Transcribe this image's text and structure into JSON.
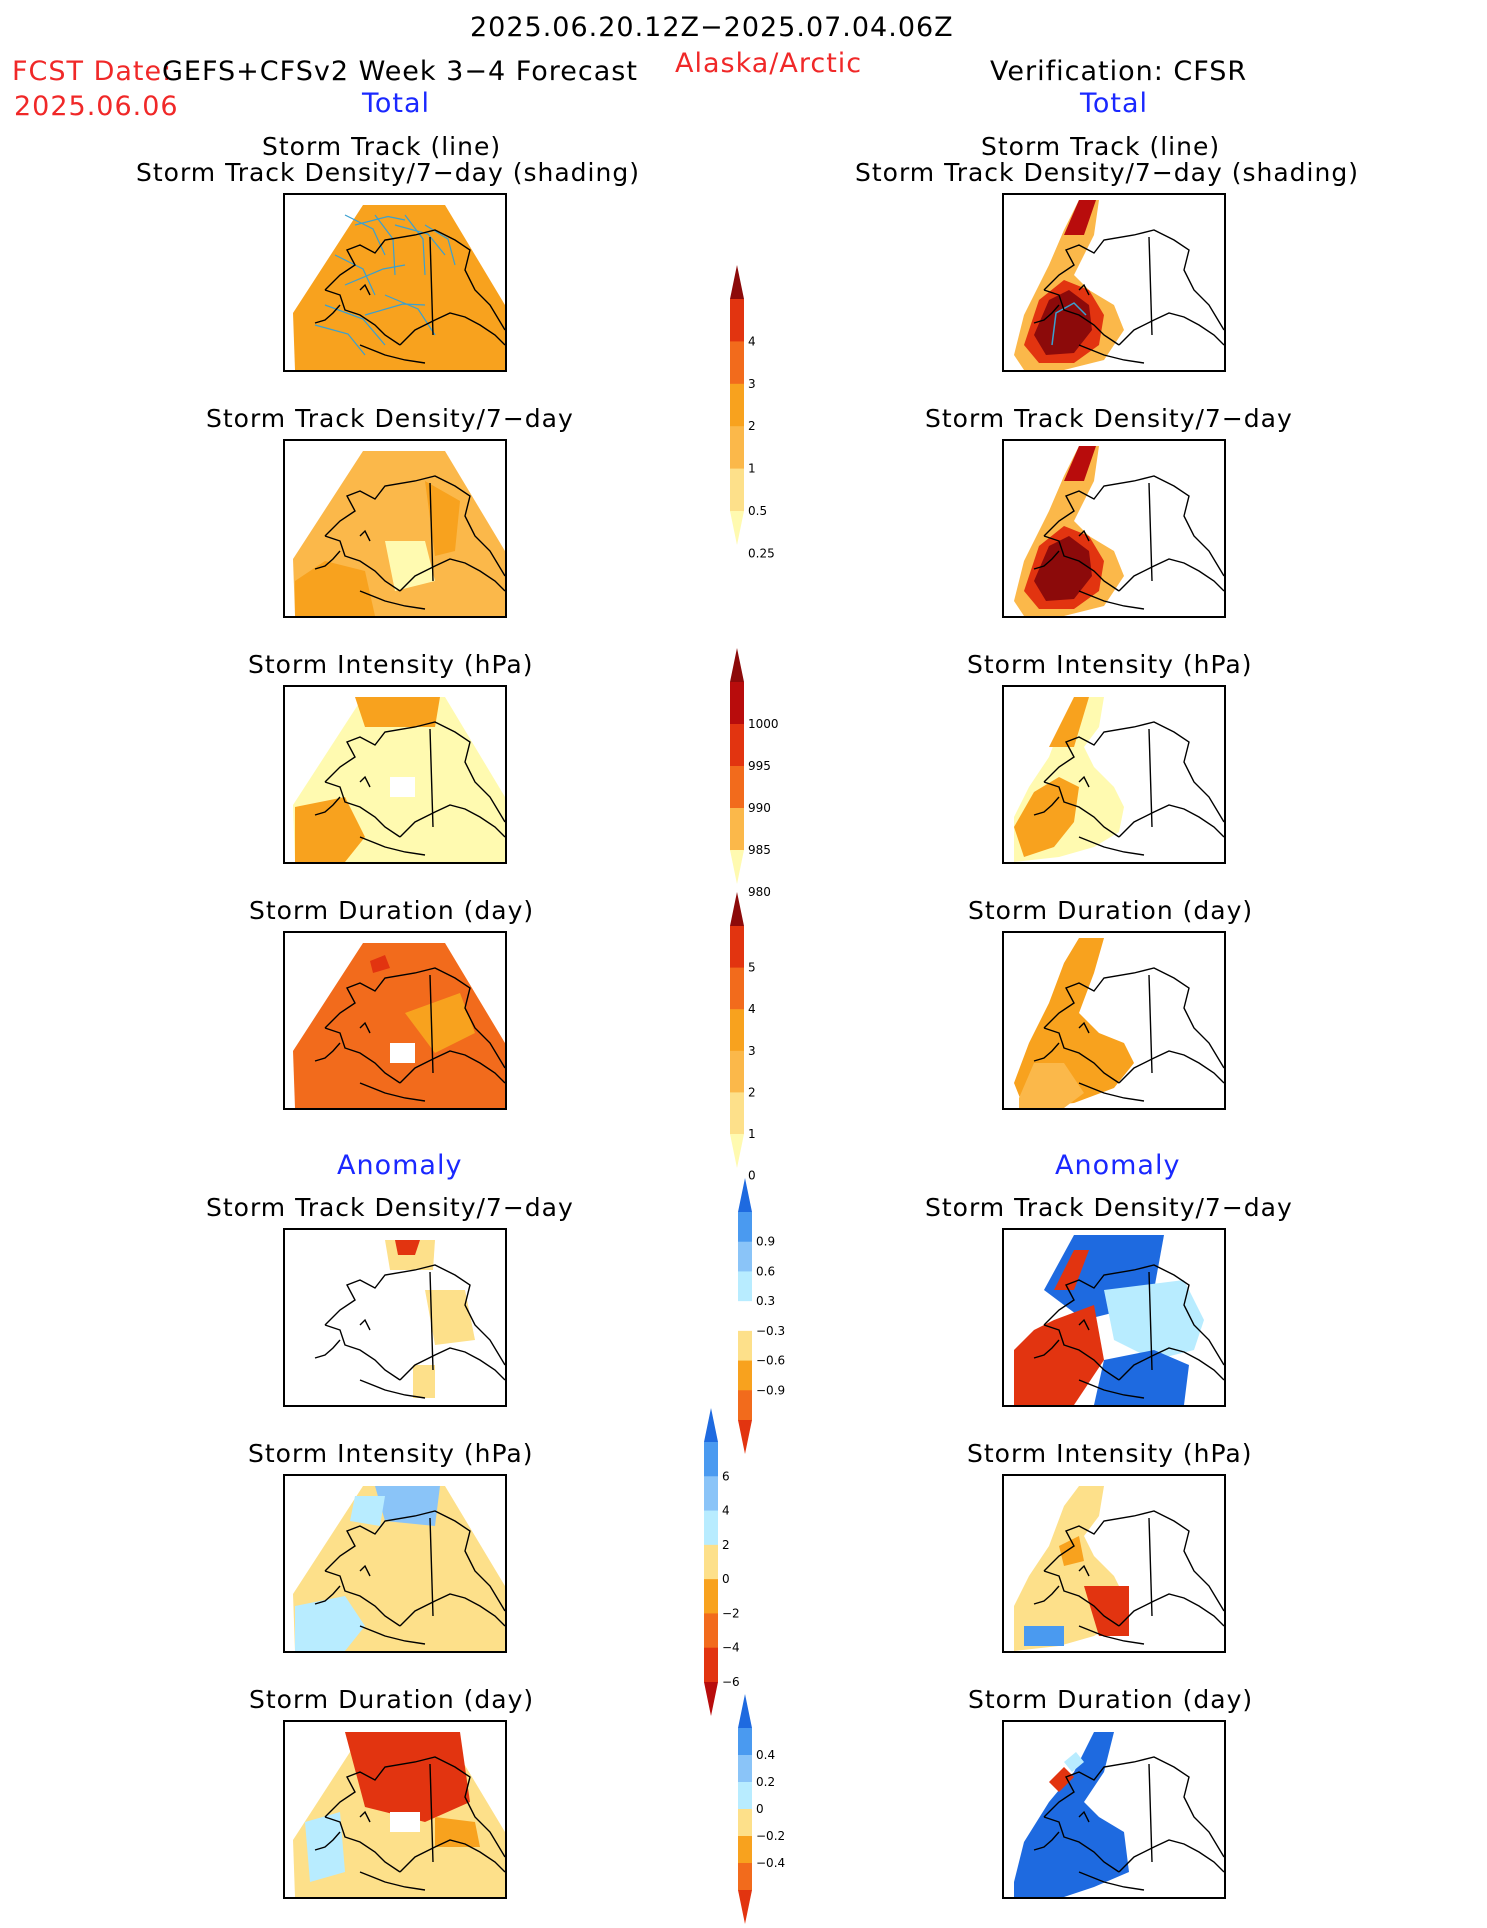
{
  "header": {
    "date_range": "2025.06.20.12Z−2025.07.04.06Z",
    "fcst_label": "FCST Date:",
    "fcst_model": "GEFS+CFSv2 Week 3−4 Forecast",
    "fcst_date": "2025.06.06",
    "region": "Alaska/Arctic",
    "verification": "Verification: CFSR"
  },
  "columns": {
    "left_total": "Total",
    "right_total": "Total",
    "left_anomaly": "Anomaly",
    "right_anomaly": "Anomaly"
  },
  "panel_titles": {
    "track_line": "Storm Track (line)",
    "track_shading": "Storm Track Density/7−day (shading)",
    "density": "Storm Track Density/7−day",
    "intensity": "Storm Intensity (hPa)",
    "duration": "Storm Duration (day)"
  },
  "colors": {
    "c0": "#fffab0",
    "c1": "#fde08a",
    "c2": "#fbb84a",
    "c3": "#f8a21e",
    "c4": "#f26b1c",
    "c5": "#e23410",
    "c6": "#b80c0c",
    "c7": "#8c0a0a",
    "b1": "#b8ecff",
    "b2": "#8ac4f8",
    "b3": "#4a9af0",
    "b4": "#1e6ae0",
    "track": "#3aa0d0"
  },
  "chart_data": [
    {
      "type": "heatmap",
      "id": "colorbar-density",
      "extend": "both",
      "ticks": [
        "0.25",
        "0.5",
        "1",
        "2",
        "3",
        "4"
      ],
      "colors": [
        "#fffab0",
        "#fde08a",
        "#fbb84a",
        "#f8a21e",
        "#f26b1c",
        "#e23410",
        "#8c0a0a"
      ]
    },
    {
      "type": "heatmap",
      "id": "colorbar-intensity",
      "extend": "both",
      "ticks": [
        "1000",
        "995",
        "990",
        "985",
        "980"
      ],
      "colors": [
        "#fffab0",
        "#fbb84a",
        "#f26b1c",
        "#e23410",
        "#b80c0c",
        "#8c0a0a"
      ]
    },
    {
      "type": "heatmap",
      "id": "colorbar-duration",
      "extend": "both",
      "ticks": [
        "0",
        "1",
        "2",
        "3",
        "4",
        "5"
      ],
      "colors": [
        "#fffab0",
        "#fde08a",
        "#fbb84a",
        "#f8a21e",
        "#f26b1c",
        "#e23410",
        "#8c0a0a"
      ]
    },
    {
      "type": "heatmap",
      "id": "colorbar-density-anom",
      "extend": "both",
      "ticks": [
        "0.9",
        "0.6",
        "0.3",
        "−0.3",
        "−0.6",
        "−0.9"
      ],
      "colors": [
        "#e23410",
        "#f26b1c",
        "#f8a21e",
        "#fde08a",
        "#ffffff",
        "#b8ecff",
        "#8ac4f8",
        "#4a9af0",
        "#1e6ae0"
      ]
    },
    {
      "type": "heatmap",
      "id": "colorbar-intensity-anom",
      "extend": "both",
      "ticks": [
        "6",
        "4",
        "2",
        "0",
        "−2",
        "−4",
        "−6"
      ],
      "colors": [
        "#b80c0c",
        "#e23410",
        "#f26b1c",
        "#f8a21e",
        "#fde08a",
        "#b8ecff",
        "#8ac4f8",
        "#4a9af0",
        "#1e6ae0"
      ]
    },
    {
      "type": "heatmap",
      "id": "colorbar-duration-anom",
      "extend": "both",
      "ticks": [
        "0.4",
        "0.2",
        "0",
        "−0.2",
        "−0.4"
      ],
      "colors": [
        "#e23410",
        "#f26b1c",
        "#f8a21e",
        "#fde08a",
        "#b8ecff",
        "#8ac4f8",
        "#4a9af0",
        "#1e6ae0"
      ]
    }
  ]
}
